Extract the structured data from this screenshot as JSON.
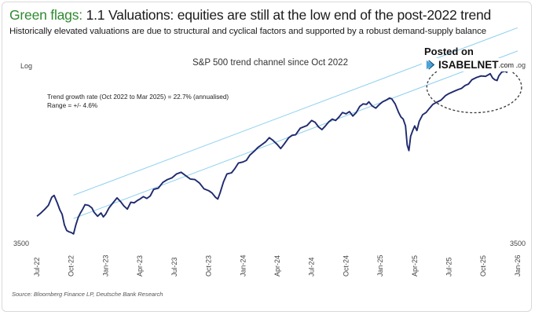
{
  "header": {
    "title_flag": "Green flags:",
    "title_rest": " 1.1 Valuations: equities are still at the low end of the post-2022 trend",
    "subtitle": "Historically elevated valuations are due to structural and cyclical factors and supported by a robust demand-supply balance"
  },
  "watermark": {
    "posted_on": "Posted on",
    "brand": "ISABELNET",
    "suffix": ".com"
  },
  "source": "Source: Bloomberg Finance LP, Deutsche Bank Research",
  "colors": {
    "flag_green": "#2f8a2f",
    "series": "#1f2a6e",
    "channel": "#8fd0ee",
    "highlight": "#3a3a3a"
  },
  "chart_data": {
    "type": "line",
    "title": "S&P 500 trend channel since Oct 2022",
    "y_scale": "log",
    "y_label_left": "Log",
    "y_label_right": "Log",
    "y_bottom_tick": "3500",
    "y_bottom_tick_right": "3500",
    "y_min": 3500,
    "y_max": 7100,
    "x_tick_labels": [
      "Jul-22",
      "Oct-22",
      "Jan-23",
      "Apr-23",
      "Jul-23",
      "Oct-23",
      "Jan-24",
      "Apr-24",
      "Jul-24",
      "Oct-24",
      "Jan-25",
      "Apr-25",
      "Jul-25",
      "Oct-25",
      "Jan-26"
    ],
    "x_tick_index": [
      0,
      3,
      6,
      9,
      12,
      15,
      18,
      21,
      24,
      27,
      30,
      33,
      36,
      39,
      42
    ],
    "annotation": [
      "Trend growth rate (Oct 2022 to Mar 2025) = 22.7% (annualised)",
      "Range = +/- 4.6%"
    ],
    "trend_growth_rate_pct": 22.7,
    "range_pct": 4.6,
    "trend_start_month_index": 3.2,
    "trend_start_value": 4000,
    "trend_end_month_index": 42,
    "series": [
      {
        "name": "S&P 500",
        "points": [
          [
            0.0,
            3850
          ],
          [
            0.35,
            3900
          ],
          [
            0.7,
            3960
          ],
          [
            1.0,
            4020
          ],
          [
            1.3,
            4150
          ],
          [
            1.5,
            4180
          ],
          [
            1.8,
            4050
          ],
          [
            2.0,
            3950
          ],
          [
            2.2,
            3880
          ],
          [
            2.4,
            3720
          ],
          [
            2.6,
            3640
          ],
          [
            2.8,
            3620
          ],
          [
            3.0,
            3610
          ],
          [
            3.2,
            3590
          ],
          [
            3.4,
            3720
          ],
          [
            3.6,
            3830
          ],
          [
            3.8,
            3900
          ],
          [
            4.0,
            3960
          ],
          [
            4.2,
            4030
          ],
          [
            4.5,
            4020
          ],
          [
            4.8,
            3980
          ],
          [
            5.0,
            3910
          ],
          [
            5.3,
            3850
          ],
          [
            5.6,
            3900
          ],
          [
            5.8,
            3840
          ],
          [
            6.0,
            3880
          ],
          [
            6.3,
            3980
          ],
          [
            6.6,
            4050
          ],
          [
            7.0,
            4140
          ],
          [
            7.3,
            4080
          ],
          [
            7.6,
            4010
          ],
          [
            7.9,
            3960
          ],
          [
            8.2,
            4070
          ],
          [
            8.5,
            4060
          ],
          [
            8.8,
            4100
          ],
          [
            9.0,
            4120
          ],
          [
            9.3,
            4160
          ],
          [
            9.6,
            4130
          ],
          [
            9.9,
            4170
          ],
          [
            10.2,
            4280
          ],
          [
            10.6,
            4300
          ],
          [
            11.0,
            4400
          ],
          [
            11.4,
            4450
          ],
          [
            11.8,
            4480
          ],
          [
            12.2,
            4550
          ],
          [
            12.6,
            4580
          ],
          [
            13.0,
            4520
          ],
          [
            13.4,
            4460
          ],
          [
            13.8,
            4450
          ],
          [
            14.2,
            4390
          ],
          [
            14.6,
            4290
          ],
          [
            15.0,
            4260
          ],
          [
            15.3,
            4220
          ],
          [
            15.6,
            4150
          ],
          [
            15.8,
            4120
          ],
          [
            16.0,
            4220
          ],
          [
            16.3,
            4410
          ],
          [
            16.6,
            4550
          ],
          [
            17.0,
            4570
          ],
          [
            17.3,
            4650
          ],
          [
            17.6,
            4750
          ],
          [
            18.0,
            4770
          ],
          [
            18.3,
            4800
          ],
          [
            18.6,
            4900
          ],
          [
            19.0,
            4980
          ],
          [
            19.3,
            5050
          ],
          [
            19.6,
            5100
          ],
          [
            20.0,
            5170
          ],
          [
            20.3,
            5250
          ],
          [
            20.6,
            5200
          ],
          [
            21.0,
            5110
          ],
          [
            21.3,
            5030
          ],
          [
            21.6,
            5120
          ],
          [
            22.0,
            5250
          ],
          [
            22.3,
            5300
          ],
          [
            22.6,
            5310
          ],
          [
            23.0,
            5450
          ],
          [
            23.3,
            5480
          ],
          [
            23.6,
            5510
          ],
          [
            24.0,
            5620
          ],
          [
            24.3,
            5580
          ],
          [
            24.6,
            5480
          ],
          [
            24.9,
            5420
          ],
          [
            25.2,
            5500
          ],
          [
            25.5,
            5590
          ],
          [
            25.8,
            5650
          ],
          [
            26.1,
            5620
          ],
          [
            26.4,
            5700
          ],
          [
            26.7,
            5800
          ],
          [
            27.0,
            5770
          ],
          [
            27.3,
            5820
          ],
          [
            27.6,
            5720
          ],
          [
            27.9,
            5800
          ],
          [
            28.2,
            5940
          ],
          [
            28.5,
            6000
          ],
          [
            28.8,
            5990
          ],
          [
            29.0,
            6050
          ],
          [
            29.3,
            5950
          ],
          [
            29.6,
            5900
          ],
          [
            29.9,
            5980
          ],
          [
            30.2,
            6050
          ],
          [
            30.5,
            6090
          ],
          [
            30.8,
            6140
          ],
          [
            31.0,
            6120
          ],
          [
            31.3,
            6000
          ],
          [
            31.6,
            5800
          ],
          [
            31.8,
            5700
          ],
          [
            32.0,
            5650
          ],
          [
            32.2,
            5500
          ],
          [
            32.35,
            5100
          ],
          [
            32.5,
            4990
          ],
          [
            32.65,
            5280
          ],
          [
            32.8,
            5380
          ],
          [
            33.0,
            5500
          ],
          [
            33.2,
            5400
          ],
          [
            33.4,
            5600
          ],
          [
            33.7,
            5750
          ],
          [
            34.0,
            5800
          ],
          [
            34.3,
            5900
          ],
          [
            34.6,
            5990
          ],
          [
            35.0,
            6050
          ],
          [
            35.3,
            6090
          ],
          [
            35.7,
            6200
          ],
          [
            36.0,
            6250
          ],
          [
            36.4,
            6300
          ],
          [
            36.8,
            6350
          ],
          [
            37.1,
            6380
          ],
          [
            37.4,
            6450
          ],
          [
            37.7,
            6490
          ],
          [
            38.0,
            6600
          ],
          [
            38.4,
            6660
          ],
          [
            38.8,
            6700
          ],
          [
            39.2,
            6690
          ],
          [
            39.6,
            6760
          ],
          [
            39.8,
            6650
          ],
          [
            40.0,
            6600
          ],
          [
            40.2,
            6580
          ],
          [
            40.35,
            6700
          ],
          [
            40.6,
            6800
          ],
          [
            40.9,
            6830
          ],
          [
            41.1,
            6790
          ]
        ]
      }
    ]
  }
}
